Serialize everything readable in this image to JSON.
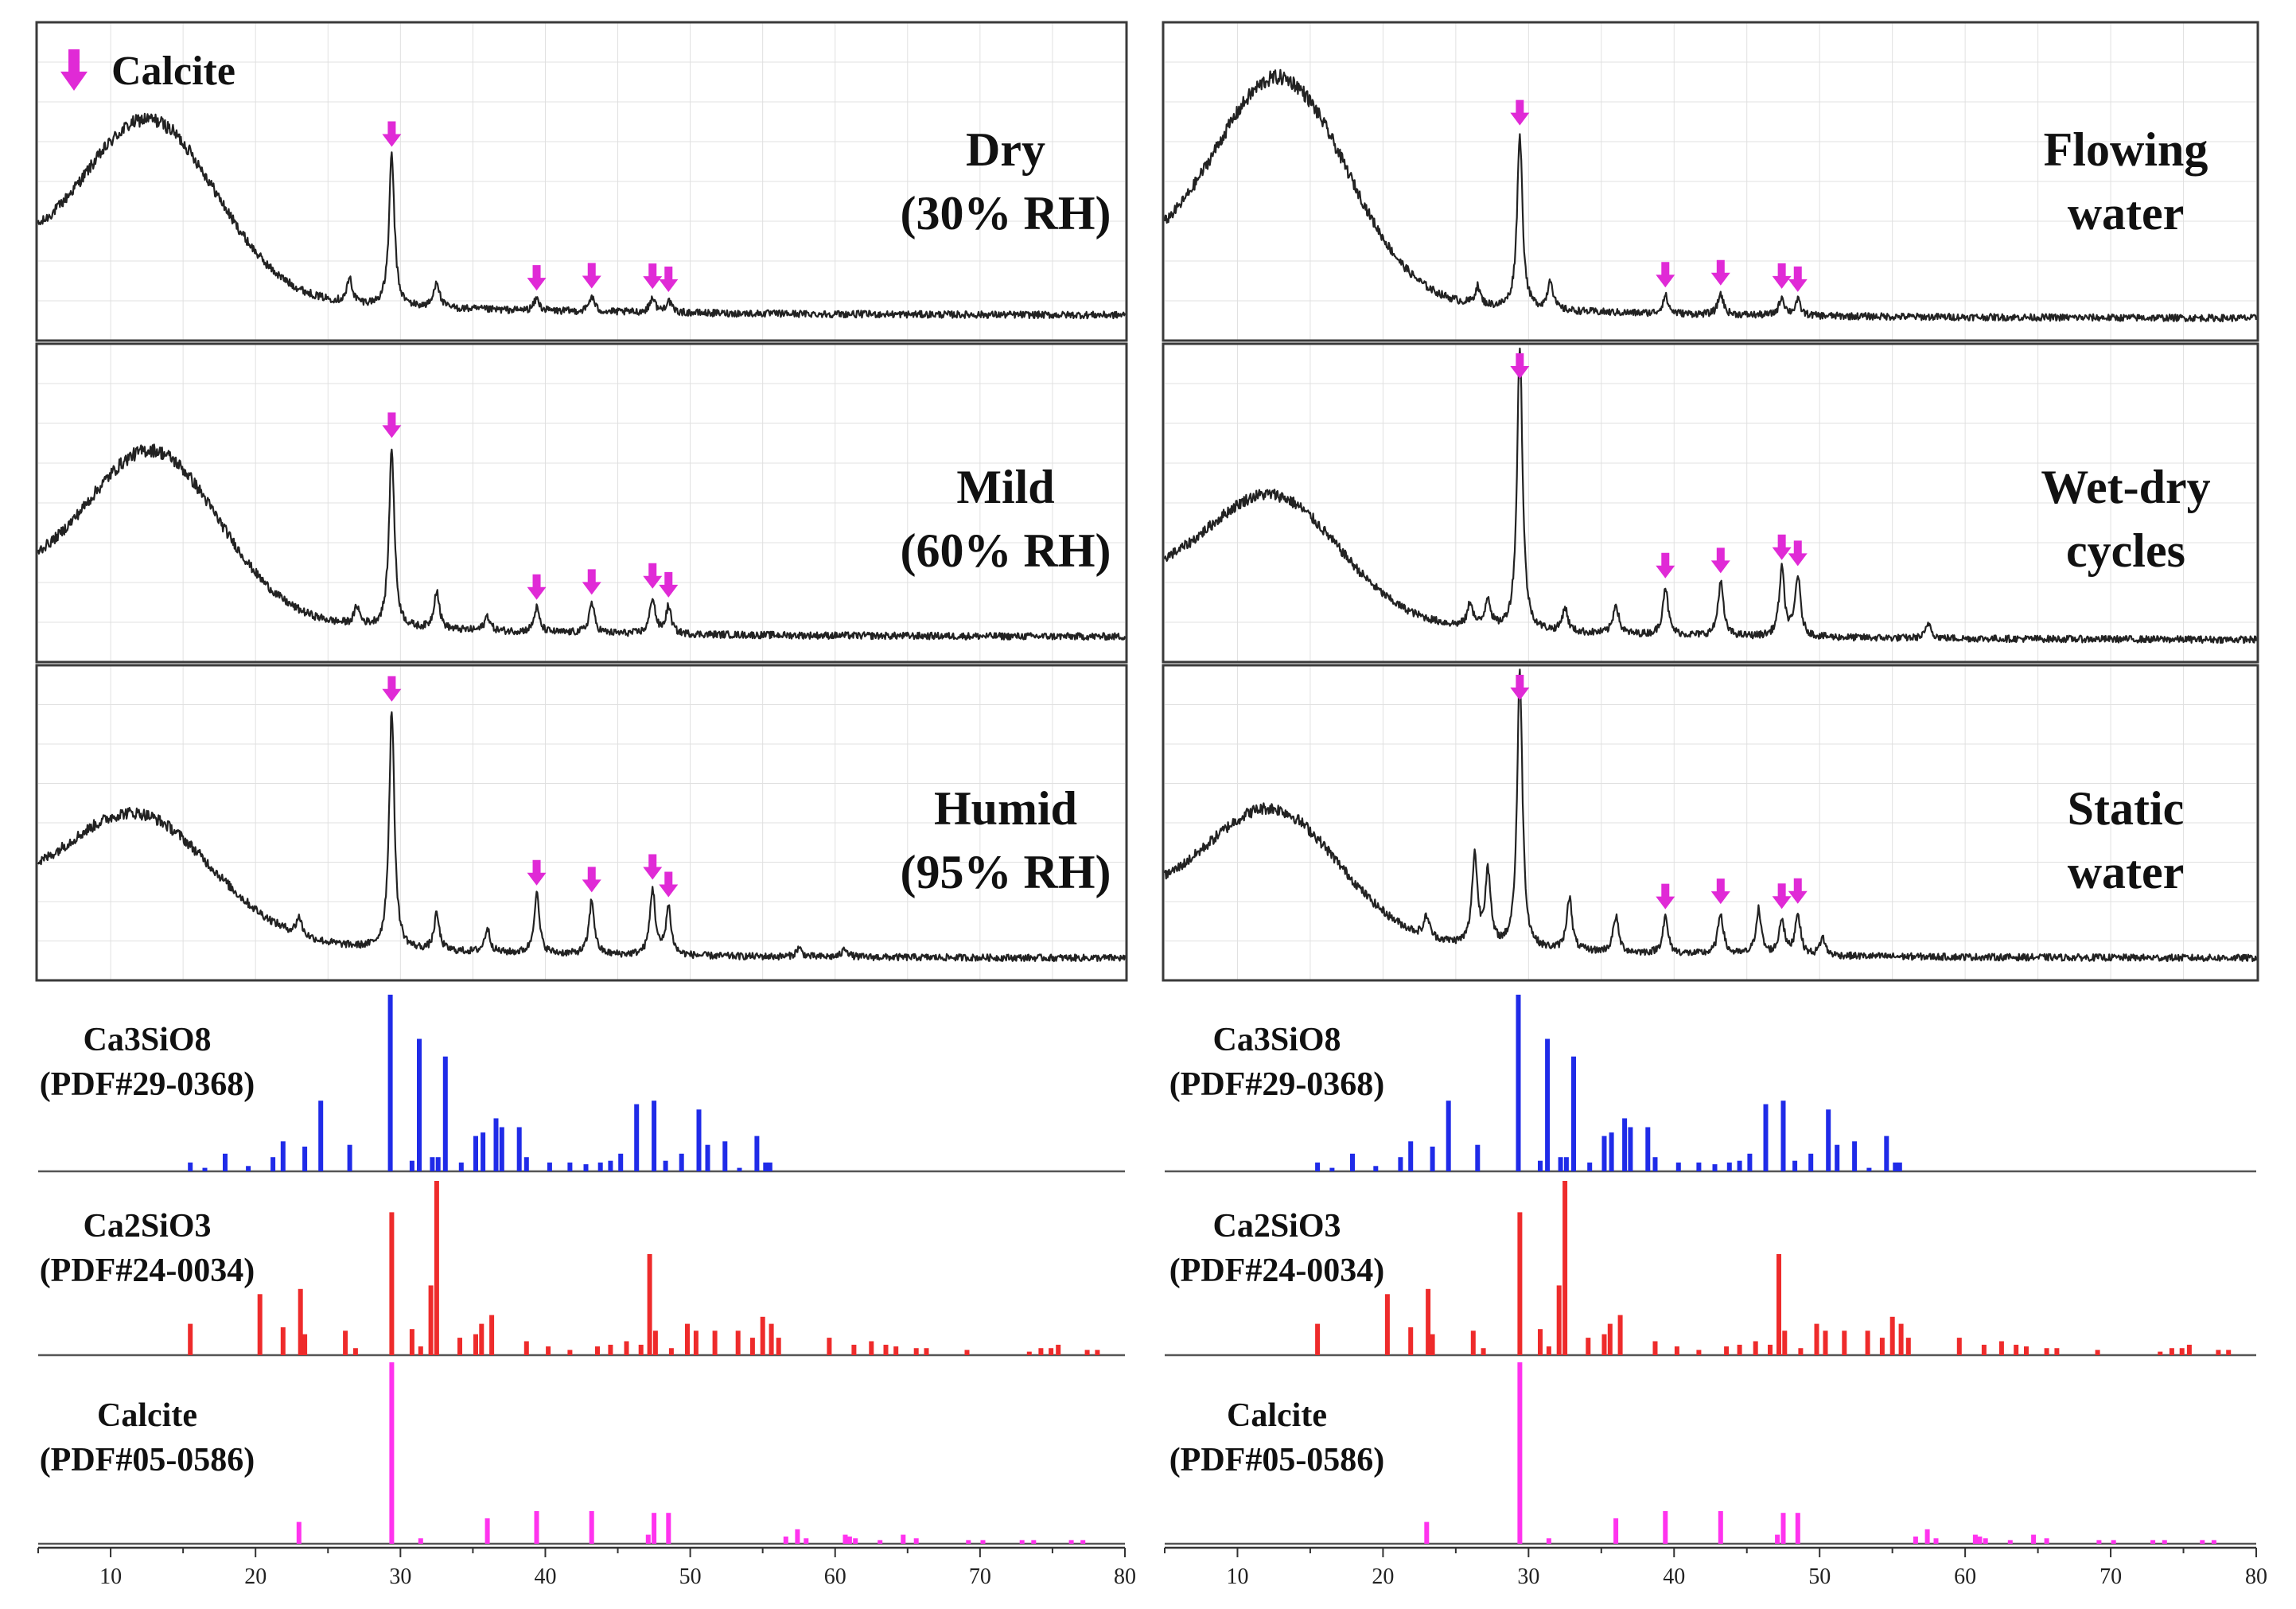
{
  "chart_data": {
    "type": "line",
    "title": "",
    "xlabel": "",
    "ylabel": "",
    "xlim": [
      5,
      80
    ],
    "x_ticks": [
      "10",
      "20",
      "30",
      "40",
      "50",
      "60",
      "70",
      "80"
    ],
    "legend": {
      "label": "Calcite",
      "marker": "magenta-down-arrow",
      "placement": "top-left"
    },
    "calcite_marker_positions_2theta": [
      29.4,
      39.4,
      43.2,
      47.4,
      48.5
    ],
    "colors": {
      "pattern": "#222222",
      "calcite_marker": "#e02ad6",
      "ca3sio8": "#1f2be8",
      "ca2sio3": "#ee2b2b",
      "calcite_ref": "#ff33ee",
      "frame": "#3a3a3a",
      "grid": "#e0e0e0"
    },
    "panels": [
      {
        "label_lines": [
          "Dry",
          "(30% RH)"
        ],
        "baseline": 0.06,
        "hump": {
          "center": 12.8,
          "height": 0.55,
          "width": 4.5
        },
        "peaks": [
          [
            29.4,
            0.5
          ],
          [
            26.5,
            0.08
          ],
          [
            32.5,
            0.09
          ],
          [
            39.4,
            0.04
          ],
          [
            43.2,
            0.05
          ],
          [
            47.4,
            0.05
          ],
          [
            48.5,
            0.04
          ]
        ]
      },
      {
        "label_lines": [
          "Mild",
          "(60% RH)"
        ],
        "baseline": 0.06,
        "hump": {
          "center": 13.0,
          "height": 0.52,
          "width": 4.5
        },
        "peaks": [
          [
            29.4,
            0.6
          ],
          [
            32.5,
            0.13
          ],
          [
            27.0,
            0.06
          ],
          [
            39.4,
            0.08
          ],
          [
            43.2,
            0.1
          ],
          [
            47.4,
            0.12
          ],
          [
            48.5,
            0.09
          ],
          [
            36.0,
            0.05
          ]
        ]
      },
      {
        "label_lines": [
          "Humid",
          "(95% RH)"
        ],
        "baseline": 0.05,
        "hump": {
          "center": 12.0,
          "height": 0.38,
          "width": 5.0
        },
        "peaks": [
          [
            29.4,
            0.8
          ],
          [
            32.5,
            0.12
          ],
          [
            23.0,
            0.06
          ],
          [
            36.0,
            0.08
          ],
          [
            39.4,
            0.2
          ],
          [
            43.2,
            0.18
          ],
          [
            47.4,
            0.22
          ],
          [
            48.5,
            0.16
          ],
          [
            57.5,
            0.03
          ],
          [
            60.7,
            0.03
          ]
        ]
      },
      {
        "label_lines": [
          "Flowing",
          "water"
        ],
        "baseline": 0.05,
        "hump": {
          "center": 13.0,
          "height": 0.7,
          "width": 4.5
        },
        "peaks": [
          [
            29.4,
            0.58
          ],
          [
            31.5,
            0.1
          ],
          [
            26.5,
            0.06
          ],
          [
            39.4,
            0.06
          ],
          [
            43.2,
            0.07
          ],
          [
            47.4,
            0.06
          ],
          [
            48.5,
            0.05
          ]
        ]
      },
      {
        "label_lines": [
          "Wet-dry",
          "cycles"
        ],
        "baseline": 0.05,
        "hump": {
          "center": 12.5,
          "height": 0.38,
          "width": 4.5
        },
        "peaks": [
          [
            29.4,
            0.95
          ],
          [
            26.0,
            0.08
          ],
          [
            27.2,
            0.1
          ],
          [
            32.5,
            0.08
          ],
          [
            36.0,
            0.1
          ],
          [
            39.4,
            0.16
          ],
          [
            43.2,
            0.18
          ],
          [
            47.4,
            0.22
          ],
          [
            48.5,
            0.2
          ],
          [
            57.5,
            0.05
          ]
        ]
      },
      {
        "label_lines": [
          "Static",
          "water"
        ],
        "baseline": 0.05,
        "hump": {
          "center": 12.5,
          "height": 0.4,
          "width": 4.5
        },
        "peaks": [
          [
            29.4,
            0.92
          ],
          [
            26.3,
            0.3
          ],
          [
            27.2,
            0.25
          ],
          [
            32.8,
            0.18
          ],
          [
            36.0,
            0.12
          ],
          [
            39.4,
            0.12
          ],
          [
            43.2,
            0.14
          ],
          [
            45.8,
            0.15
          ],
          [
            47.4,
            0.12
          ],
          [
            48.5,
            0.14
          ],
          [
            50.2,
            0.06
          ],
          [
            23.0,
            0.07
          ]
        ]
      }
    ],
    "references": [
      {
        "name": "Ca3SiO8",
        "pdf": "(PDF#29-0368)",
        "color": "#1f2be8",
        "sticks": [
          [
            15.5,
            0.05
          ],
          [
            16.5,
            0.02
          ],
          [
            17.9,
            0.1
          ],
          [
            19.5,
            0.03
          ],
          [
            21.2,
            0.08
          ],
          [
            21.9,
            0.17
          ],
          [
            23.4,
            0.14
          ],
          [
            24.5,
            0.4
          ],
          [
            26.5,
            0.15
          ],
          [
            29.3,
            1.0
          ],
          [
            30.8,
            0.06
          ],
          [
            31.3,
            0.75
          ],
          [
            32.2,
            0.08
          ],
          [
            32.6,
            0.08
          ],
          [
            33.1,
            0.65
          ],
          [
            34.2,
            0.05
          ],
          [
            35.2,
            0.2
          ],
          [
            35.7,
            0.22
          ],
          [
            36.6,
            0.3
          ],
          [
            37.0,
            0.25
          ],
          [
            38.2,
            0.25
          ],
          [
            38.7,
            0.08
          ],
          [
            40.3,
            0.05
          ],
          [
            41.7,
            0.05
          ],
          [
            42.8,
            0.04
          ],
          [
            43.8,
            0.05
          ],
          [
            44.5,
            0.06
          ],
          [
            45.2,
            0.1
          ],
          [
            46.3,
            0.38
          ],
          [
            47.5,
            0.4
          ],
          [
            48.3,
            0.06
          ],
          [
            49.4,
            0.1
          ],
          [
            50.6,
            0.35
          ],
          [
            51.2,
            0.15
          ],
          [
            52.4,
            0.17
          ],
          [
            53.4,
            0.02
          ],
          [
            54.6,
            0.2
          ],
          [
            55.2,
            0.05
          ],
          [
            55.5,
            0.05
          ]
        ]
      },
      {
        "name": "Ca2SiO3",
        "pdf": "(PDF#24-0034)",
        "color": "#ee2b2b",
        "sticks": [
          [
            15.5,
            0.18
          ],
          [
            20.3,
            0.35
          ],
          [
            21.9,
            0.16
          ],
          [
            23.1,
            0.38
          ],
          [
            23.4,
            0.12
          ],
          [
            26.2,
            0.14
          ],
          [
            26.9,
            0.04
          ],
          [
            29.4,
            0.82
          ],
          [
            30.8,
            0.15
          ],
          [
            31.4,
            0.05
          ],
          [
            32.1,
            0.4
          ],
          [
            32.5,
            1.0
          ],
          [
            34.1,
            0.1
          ],
          [
            35.2,
            0.12
          ],
          [
            35.6,
            0.18
          ],
          [
            36.3,
            0.23
          ],
          [
            38.7,
            0.08
          ],
          [
            40.2,
            0.05
          ],
          [
            41.7,
            0.03
          ],
          [
            43.6,
            0.05
          ],
          [
            44.5,
            0.06
          ],
          [
            45.6,
            0.08
          ],
          [
            46.6,
            0.06
          ],
          [
            47.2,
            0.58
          ],
          [
            47.6,
            0.14
          ],
          [
            48.7,
            0.04
          ],
          [
            49.8,
            0.18
          ],
          [
            50.4,
            0.14
          ],
          [
            51.7,
            0.14
          ],
          [
            53.3,
            0.14
          ],
          [
            54.3,
            0.1
          ],
          [
            55.0,
            0.22
          ],
          [
            55.6,
            0.18
          ],
          [
            56.1,
            0.1
          ],
          [
            59.6,
            0.1
          ],
          [
            61.3,
            0.06
          ],
          [
            62.5,
            0.08
          ],
          [
            63.5,
            0.06
          ],
          [
            64.2,
            0.05
          ],
          [
            65.6,
            0.04
          ],
          [
            66.3,
            0.04
          ],
          [
            69.1,
            0.03
          ],
          [
            73.4,
            0.02
          ],
          [
            74.2,
            0.04
          ],
          [
            74.9,
            0.04
          ],
          [
            75.4,
            0.06
          ],
          [
            77.4,
            0.03
          ],
          [
            78.1,
            0.03
          ]
        ]
      },
      {
        "name": "Calcite",
        "pdf": "(PDF#05-0586)",
        "color": "#ff33ee",
        "sticks": [
          [
            23.0,
            0.12
          ],
          [
            29.4,
            1.0
          ],
          [
            31.4,
            0.03
          ],
          [
            36.0,
            0.14
          ],
          [
            39.4,
            0.18
          ],
          [
            43.2,
            0.18
          ],
          [
            47.1,
            0.05
          ],
          [
            47.5,
            0.17
          ],
          [
            48.5,
            0.17
          ],
          [
            56.6,
            0.04
          ],
          [
            57.4,
            0.08
          ],
          [
            58.0,
            0.03
          ],
          [
            60.7,
            0.05
          ],
          [
            61.0,
            0.04
          ],
          [
            61.4,
            0.03
          ],
          [
            63.1,
            0.02
          ],
          [
            64.7,
            0.05
          ],
          [
            65.6,
            0.03
          ],
          [
            69.2,
            0.02
          ],
          [
            70.2,
            0.02
          ],
          [
            72.9,
            0.02
          ],
          [
            73.7,
            0.02
          ],
          [
            76.3,
            0.02
          ],
          [
            77.1,
            0.02
          ]
        ]
      }
    ]
  }
}
